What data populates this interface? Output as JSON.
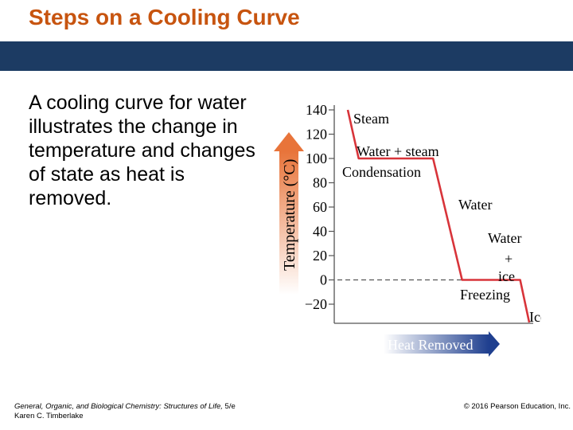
{
  "slide": {
    "title": "Steps on a Cooling Curve",
    "description": "A cooling curve for water illustrates the change in temperature and changes of state as heat is removed.",
    "footer": {
      "book_title": "General, Organic, and Biological Chemistry: Structures of Life,",
      "edition": " 5/e",
      "author": "Karen C. Timberlake",
      "copyright": "© 2016 Pearson Education, Inc."
    }
  },
  "colors": {
    "title": "#c7540f",
    "band": "#1c3b63",
    "curve": "#d8343a",
    "axis_arrow": "#e8743a",
    "heat_arrow_start": "#ffffff",
    "heat_arrow_end": "#1f3f8f"
  },
  "chart_data": {
    "type": "line",
    "title": "",
    "xlabel": "Heat Removed",
    "ylabel": "Temperature (°C)",
    "ylim": [
      -30,
      145
    ],
    "y_ticks": [
      140,
      120,
      100,
      80,
      60,
      40,
      20,
      0,
      -20
    ],
    "y_tick_labels": [
      "140",
      "120",
      "100",
      "80",
      "60",
      "40",
      "20",
      "0",
      "−20"
    ],
    "x_values_fraction_of_heat_removed": [
      0.0,
      0.06,
      0.47,
      0.63,
      0.95,
      1.0
    ],
    "y_values": [
      140,
      100,
      100,
      0,
      0,
      -35
    ],
    "reference_line": {
      "y": 0,
      "style": "dashed"
    },
    "annotations": [
      {
        "text": "Steam",
        "segment": "steam"
      },
      {
        "text": "Water + steam",
        "segment": "water-steam"
      },
      {
        "text": "Condensation",
        "segment": "condensation"
      },
      {
        "text": "Water",
        "segment": "water"
      },
      {
        "text": "Water",
        "segment": "water-ice-1"
      },
      {
        "text": "+",
        "segment": "water-ice-2"
      },
      {
        "text": "ice",
        "segment": "water-ice-3"
      },
      {
        "text": "Freezing",
        "segment": "freezing"
      },
      {
        "text": "Ice",
        "segment": "ice"
      }
    ]
  }
}
